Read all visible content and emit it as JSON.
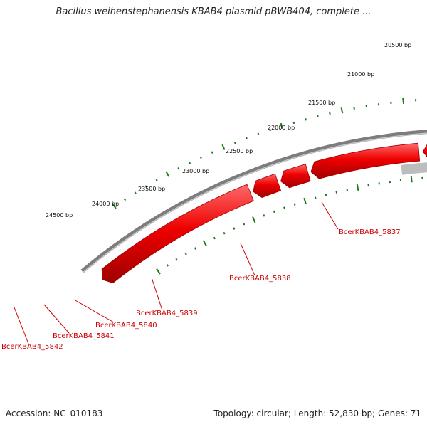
{
  "title": "Bacillus weihenstephanensis KBAB4 plasmid pBWB404, complete ...",
  "accession": "Accession: NC_010183",
  "summary": "Topology: circular; Length: 52,830 bp; Genes: 71",
  "colors": {
    "gene_fill": "#ee0000",
    "gene_highlight": "#ff5a5a",
    "gene_dark": "#a00000",
    "tick": "#1a7a1a",
    "backbone": "#7d7d7d",
    "label": "#cc0000",
    "track_dark": "#555555",
    "track_light": "#bdbdbd"
  },
  "ticks": [
    {
      "label": "20500 bp"
    },
    {
      "label": "21000 bp"
    },
    {
      "label": "21500 bp"
    },
    {
      "label": "22000 bp"
    },
    {
      "label": "22500 bp"
    },
    {
      "label": "23000 bp"
    },
    {
      "label": "23500 bp"
    },
    {
      "label": "24000 bp"
    },
    {
      "label": "24500 bp"
    }
  ],
  "genes": [
    {
      "name": "BcerKBAB4_5837"
    },
    {
      "name": "BcerKBAB4_5838"
    },
    {
      "name": "BcerKBAB4_5839"
    },
    {
      "name": "BcerKBAB4_5840"
    },
    {
      "name": "BcerKBAB4_5841"
    },
    {
      "name": "BcerKBAB4_5842"
    }
  ]
}
